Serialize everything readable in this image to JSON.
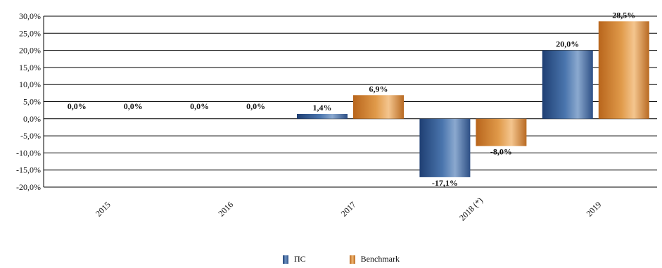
{
  "chart_data": {
    "type": "bar",
    "categories": [
      "2015",
      "2016",
      "2017",
      "2018 (*)",
      "2019"
    ],
    "series": [
      {
        "name": "ПС",
        "values": [
          0.0,
          0.0,
          1.4,
          -17.1,
          20.0
        ],
        "labels": [
          "0,0%",
          "0,0%",
          "1,4%",
          "-17,1%",
          "20,0%"
        ]
      },
      {
        "name": "Benchmark",
        "values": [
          0.0,
          0.0,
          6.9,
          -8.0,
          28.5
        ],
        "labels": [
          "0,0%",
          "0,0%",
          "6,9%",
          "-8,0%",
          "28,5%"
        ]
      }
    ],
    "ylim": [
      -20,
      30
    ],
    "yticks": [
      30,
      25,
      20,
      15,
      10,
      5,
      0,
      -5,
      -10,
      -15,
      -20
    ],
    "ytick_labels": [
      "30,0%",
      "25,0%",
      "20,0%",
      "15,0%",
      "10,0%",
      "5,0%",
      "0,0%",
      "-5,0%",
      "-10,0%",
      "-15,0%",
      "-20,0%"
    ],
    "grid": true,
    "legend_position": "bottom",
    "colors": {
      "ПС": "#3a5f95",
      "Benchmark": "#d78a36"
    }
  },
  "legend": {
    "series1": "ПС",
    "series2": "Benchmark"
  }
}
